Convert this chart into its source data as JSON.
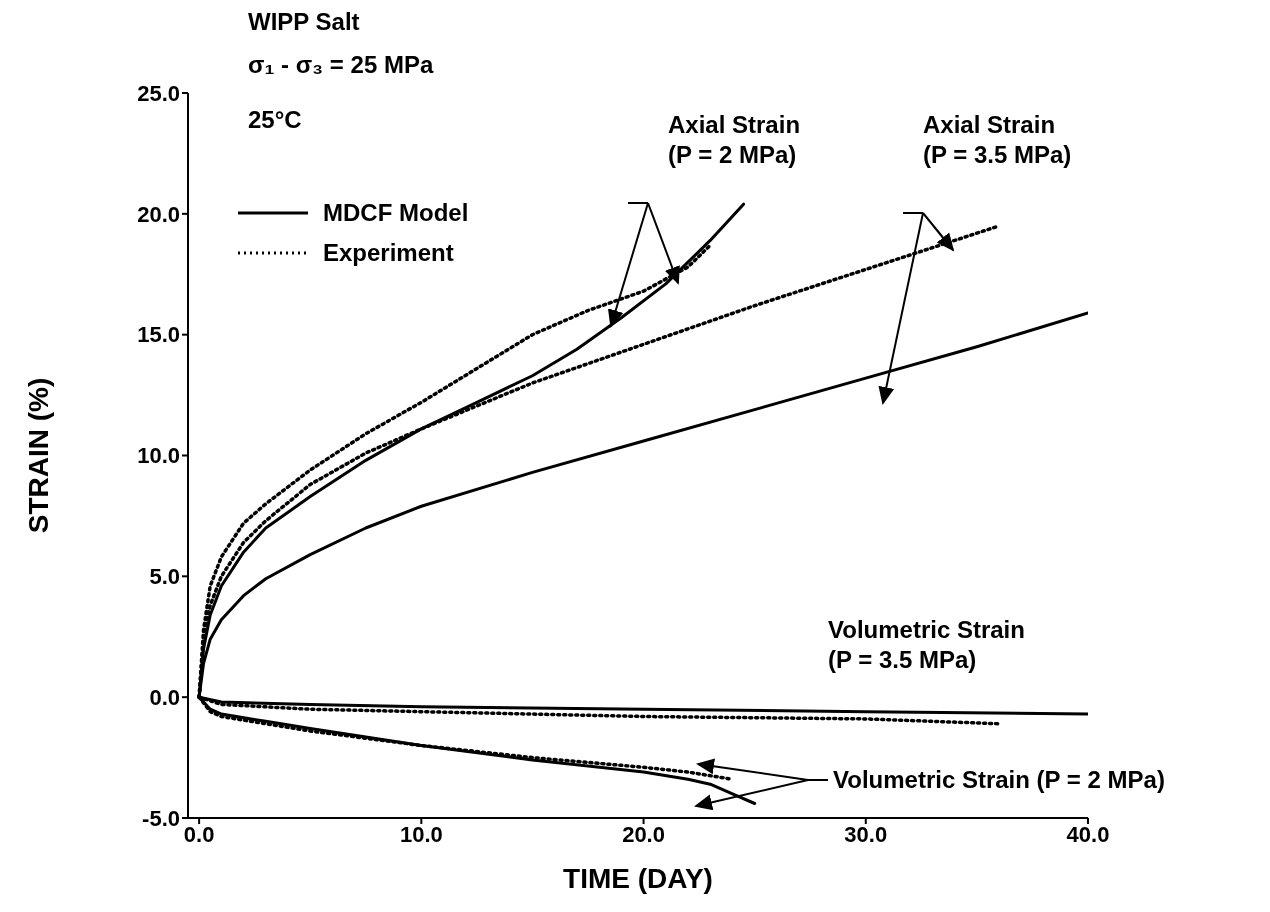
{
  "chart_data": {
    "type": "line",
    "title": "WIPP Salt",
    "xlabel": "TIME (DAY)",
    "ylabel": "STRAIN (%)",
    "xlim": [
      -0.5,
      40
    ],
    "ylim": [
      -5,
      25
    ],
    "xticks": [
      {
        "value": 0,
        "label": "0.0"
      },
      {
        "value": 10,
        "label": "10.0"
      },
      {
        "value": 20,
        "label": "20.0"
      },
      {
        "value": 30,
        "label": "30.0"
      },
      {
        "value": 40,
        "label": "40.0"
      }
    ],
    "yticks": [
      {
        "value": -5,
        "label": "-5.0"
      },
      {
        "value": 0,
        "label": "0.0"
      },
      {
        "value": 5,
        "label": "5.0"
      },
      {
        "value": 10,
        "label": "10.0"
      },
      {
        "value": 15,
        "label": "15.0"
      },
      {
        "value": 20,
        "label": "20.0"
      },
      {
        "value": 25,
        "label": "25.0"
      }
    ],
    "grid": false,
    "legend": "top left",
    "marker": "none",
    "annotations": [
      "σ₁ - σ₃ = 25 MPa",
      "25°C",
      "Axial Strain\n(P = 2 MPa)",
      "Axial Strain\n(P = 3.5 MPa)",
      "Volumetric Strain\n(P = 3.5 MPa)",
      "Volumetric Strain (P = 2 MPa)"
    ],
    "series": [
      {
        "name": "MDCF Model",
        "color": "#000000",
        "line_style": "solid",
        "x": [
          0,
          0.2,
          0.5,
          1,
          2,
          3,
          5,
          7.5,
          10,
          12.5,
          15,
          17,
          19,
          21,
          22,
          23,
          24.5
        ],
        "values": [
          0,
          2.0,
          3.4,
          4.6,
          6.0,
          7.0,
          8.3,
          9.8,
          11.1,
          12.2,
          13.3,
          14.4,
          15.7,
          17.1,
          18.0,
          18.9,
          20.4
        ]
      },
      {
        "name": "Experiment",
        "color": "#000000",
        "line_style": "dotted",
        "x": [
          0,
          0.2,
          0.5,
          1,
          2,
          3,
          5,
          7.5,
          10,
          12.5,
          15,
          17.5,
          20,
          22,
          23
        ],
        "values": [
          0,
          2.8,
          4.6,
          5.8,
          7.2,
          8.0,
          9.4,
          10.9,
          12.2,
          13.6,
          15.0,
          16.0,
          16.8,
          17.8,
          18.7
        ]
      },
      {
        "color": "#000000",
        "line_style": "solid",
        "x": [
          0,
          0.2,
          0.5,
          1,
          2,
          3,
          5,
          7.5,
          10,
          15,
          20,
          25,
          30,
          35,
          40
        ],
        "values": [
          0,
          1.4,
          2.4,
          3.2,
          4.2,
          4.9,
          5.9,
          7.0,
          7.9,
          9.3,
          10.6,
          11.9,
          13.2,
          14.5,
          15.9
        ]
      },
      {
        "color": "#000000",
        "line_style": "dotted",
        "x": [
          0,
          0.2,
          0.5,
          1,
          2,
          3,
          5,
          7.5,
          10,
          15,
          20,
          25,
          30,
          35,
          36
        ],
        "values": [
          0,
          2.4,
          3.8,
          5.0,
          6.4,
          7.3,
          8.8,
          10.1,
          11.1,
          13.0,
          14.6,
          16.2,
          17.7,
          19.2,
          19.5
        ]
      },
      {
        "color": "#000000",
        "line_style": "solid",
        "x": [
          0,
          1,
          5,
          10,
          20,
          30,
          40
        ],
        "values": [
          0,
          -0.2,
          -0.3,
          -0.4,
          -0.5,
          -0.6,
          -0.7
        ]
      },
      {
        "color": "#000000",
        "line_style": "dotted",
        "x": [
          0,
          1,
          5,
          10,
          20,
          30,
          36
        ],
        "values": [
          0,
          -0.3,
          -0.5,
          -0.6,
          -0.8,
          -0.9,
          -1.1
        ]
      },
      {
        "color": "#000000",
        "line_style": "solid",
        "x": [
          0,
          0.5,
          1,
          3,
          5,
          10,
          15,
          20,
          22,
          23,
          24,
          25
        ],
        "values": [
          0,
          -0.5,
          -0.7,
          -1.0,
          -1.3,
          -2.0,
          -2.6,
          -3.1,
          -3.4,
          -3.6,
          -4.0,
          -4.4
        ]
      },
      {
        "color": "#000000",
        "line_style": "dotted",
        "x": [
          0,
          0.5,
          1,
          3,
          5,
          10,
          15,
          20,
          22,
          24
        ],
        "values": [
          0,
          -0.6,
          -0.8,
          -1.1,
          -1.4,
          -2.0,
          -2.5,
          -2.9,
          -3.1,
          -3.4
        ]
      }
    ]
  }
}
